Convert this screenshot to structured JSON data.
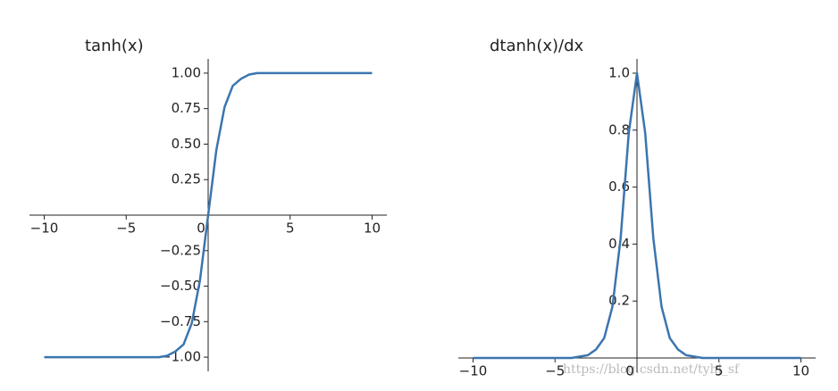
{
  "chart_data": [
    {
      "type": "line",
      "title": "tanh(x)",
      "color": "#3b75af",
      "x": [
        -10,
        -8,
        -6,
        -4,
        -3,
        -2.5,
        -2,
        -1.5,
        -1,
        -0.5,
        0,
        0.5,
        1,
        1.5,
        2,
        2.5,
        3,
        4,
        6,
        8,
        10
      ],
      "values": [
        -1,
        -1,
        -1,
        -1,
        -1,
        -0.99,
        -0.96,
        -0.91,
        -0.76,
        -0.46,
        0,
        0.46,
        0.76,
        0.91,
        0.96,
        0.99,
        1,
        1,
        1,
        1,
        1
      ],
      "xlim": [
        -10.9,
        10.9
      ],
      "ylim": [
        -1.1,
        1.1
      ],
      "xticks": [
        {
          "value": -10,
          "label": "−10"
        },
        {
          "value": -5,
          "label": "−5"
        },
        0,
        5,
        10
      ],
      "yticks": [
        {
          "value": -1,
          "label": "−1.00"
        },
        {
          "value": -0.75,
          "label": "−0.75"
        },
        {
          "value": -0.5,
          "label": "−0.50"
        },
        {
          "value": -0.25,
          "label": "−0.25"
        },
        {
          "value": 0.25,
          "label": "0.25"
        },
        {
          "value": 0.5,
          "label": "0.50"
        },
        {
          "value": 0.75,
          "label": "0.75"
        },
        {
          "value": 1,
          "label": "1.00"
        }
      ]
    },
    {
      "type": "line",
      "title": "dtanh(x)/dx",
      "color": "#3b75af",
      "x": [
        -10,
        -8,
        -6,
        -4,
        -3,
        -2.5,
        -2,
        -1.5,
        -1,
        -0.5,
        0,
        0.5,
        1,
        1.5,
        2,
        2.5,
        3,
        4,
        6,
        8,
        10
      ],
      "values": [
        0,
        0,
        0,
        0,
        0.01,
        0.03,
        0.07,
        0.18,
        0.42,
        0.79,
        1,
        0.79,
        0.42,
        0.18,
        0.07,
        0.03,
        0.01,
        0,
        0,
        0,
        0
      ],
      "xlim": [
        -10.9,
        10.9
      ],
      "ylim": [
        -0.05,
        1.05
      ],
      "xticks": [
        {
          "value": -10,
          "label": "−10"
        },
        {
          "value": -5,
          "label": "−5"
        },
        0,
        5,
        10
      ],
      "yticks": [
        0.2,
        0.4,
        0.6,
        0.8,
        {
          "value": 1,
          "label": "1.0"
        }
      ]
    }
  ],
  "watermark": "https://blog.csdn.net/tyhj_sf"
}
